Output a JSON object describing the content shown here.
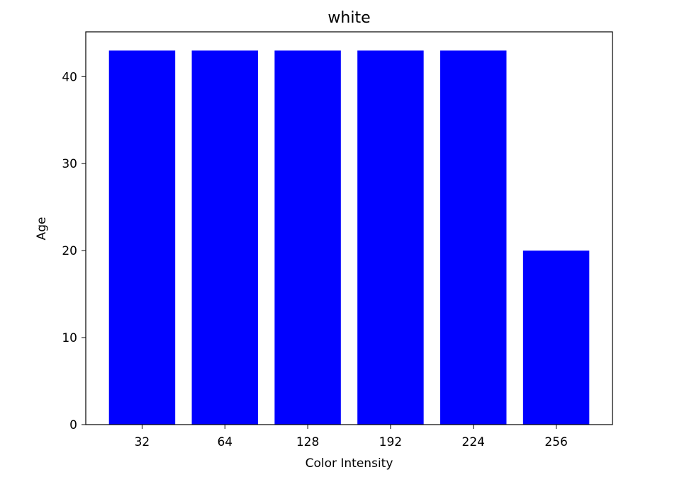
{
  "chart_data": {
    "type": "bar",
    "title": "white",
    "xlabel": "Color Intensity",
    "ylabel": "Age",
    "categories": [
      "32",
      "64",
      "128",
      "192",
      "224",
      "256"
    ],
    "values": [
      43,
      43,
      43,
      43,
      43,
      20
    ],
    "ylim": [
      0,
      45.15
    ],
    "yticks": [
      0,
      10,
      20,
      30,
      40
    ],
    "grid": false,
    "legend": "none",
    "bar_color": "#0000ff"
  }
}
